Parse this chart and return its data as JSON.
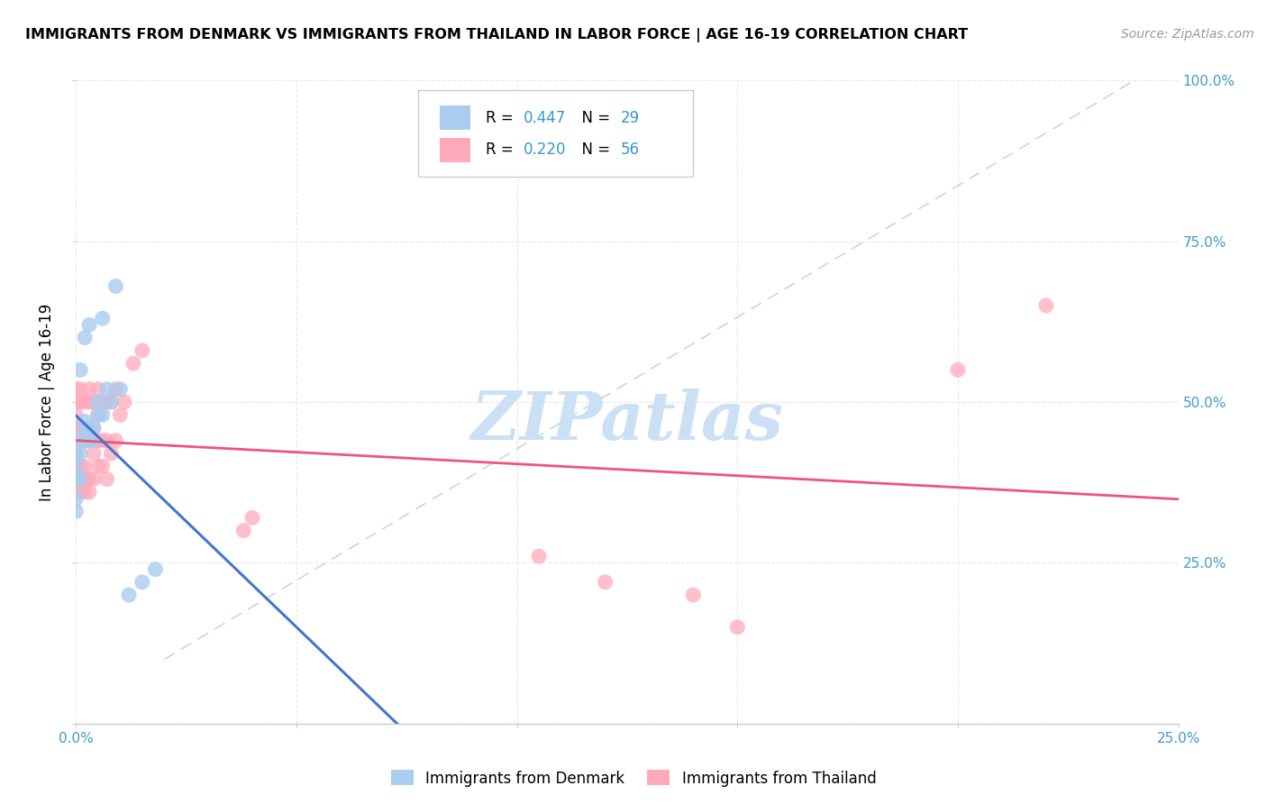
{
  "title": "IMMIGRANTS FROM DENMARK VS IMMIGRANTS FROM THAILAND IN LABOR FORCE | AGE 16-19 CORRELATION CHART",
  "source": "Source: ZipAtlas.com",
  "ylabel": "In Labor Force | Age 16-19",
  "xlim": [
    0.0,
    0.25
  ],
  "ylim": [
    0.0,
    1.0
  ],
  "denmark_color": "#aaccee",
  "thailand_color": "#ffaabb",
  "denmark_line_color": "#4477cc",
  "thailand_line_color": "#ee5577",
  "ref_line_color": "#bbccdd",
  "denmark_R": 0.447,
  "denmark_N": 29,
  "thailand_R": 0.22,
  "thailand_N": 56,
  "axis_label_color": "#4499cc",
  "background_color": "#ffffff",
  "grid_color": "#e8e8e8",
  "watermark": "ZIPatlas",
  "watermark_color": "#cce0f5",
  "legend_value_color": "#3399cc",
  "denmark_scatter_x": [
    0.0,
    0.0,
    0.0,
    0.0,
    0.0,
    0.001,
    0.001,
    0.001,
    0.001,
    0.002,
    0.002,
    0.002,
    0.002,
    0.003,
    0.003,
    0.003,
    0.004,
    0.004,
    0.005,
    0.005,
    0.006,
    0.006,
    0.007,
    0.008,
    0.009,
    0.01,
    0.012,
    0.015,
    0.018
  ],
  "denmark_scatter_y": [
    0.33,
    0.35,
    0.38,
    0.4,
    0.42,
    0.38,
    0.42,
    0.44,
    0.55,
    0.44,
    0.46,
    0.47,
    0.6,
    0.44,
    0.46,
    0.62,
    0.44,
    0.46,
    0.48,
    0.5,
    0.48,
    0.63,
    0.52,
    0.5,
    0.68,
    0.52,
    0.2,
    0.22,
    0.24
  ],
  "thailand_scatter_x": [
    0.0,
    0.0,
    0.0,
    0.0,
    0.0,
    0.0,
    0.0,
    0.0,
    0.0,
    0.001,
    0.001,
    0.001,
    0.001,
    0.001,
    0.001,
    0.001,
    0.002,
    0.002,
    0.002,
    0.002,
    0.002,
    0.003,
    0.003,
    0.003,
    0.003,
    0.003,
    0.004,
    0.004,
    0.004,
    0.004,
    0.005,
    0.005,
    0.005,
    0.005,
    0.006,
    0.006,
    0.006,
    0.007,
    0.007,
    0.007,
    0.008,
    0.008,
    0.009,
    0.009,
    0.01,
    0.011,
    0.013,
    0.015,
    0.038,
    0.04,
    0.14,
    0.15,
    0.2,
    0.22,
    0.105,
    0.12
  ],
  "thailand_scatter_y": [
    0.36,
    0.38,
    0.4,
    0.42,
    0.44,
    0.46,
    0.48,
    0.5,
    0.52,
    0.36,
    0.38,
    0.4,
    0.44,
    0.46,
    0.5,
    0.52,
    0.36,
    0.38,
    0.4,
    0.44,
    0.5,
    0.36,
    0.38,
    0.44,
    0.5,
    0.52,
    0.38,
    0.42,
    0.46,
    0.5,
    0.4,
    0.44,
    0.48,
    0.52,
    0.4,
    0.44,
    0.5,
    0.38,
    0.44,
    0.5,
    0.42,
    0.5,
    0.44,
    0.52,
    0.48,
    0.5,
    0.56,
    0.58,
    0.3,
    0.32,
    0.2,
    0.15,
    0.55,
    0.65,
    0.26,
    0.22
  ],
  "ref_line_x": [
    0.02,
    0.24
  ],
  "ref_line_y": [
    0.1,
    1.0
  ]
}
